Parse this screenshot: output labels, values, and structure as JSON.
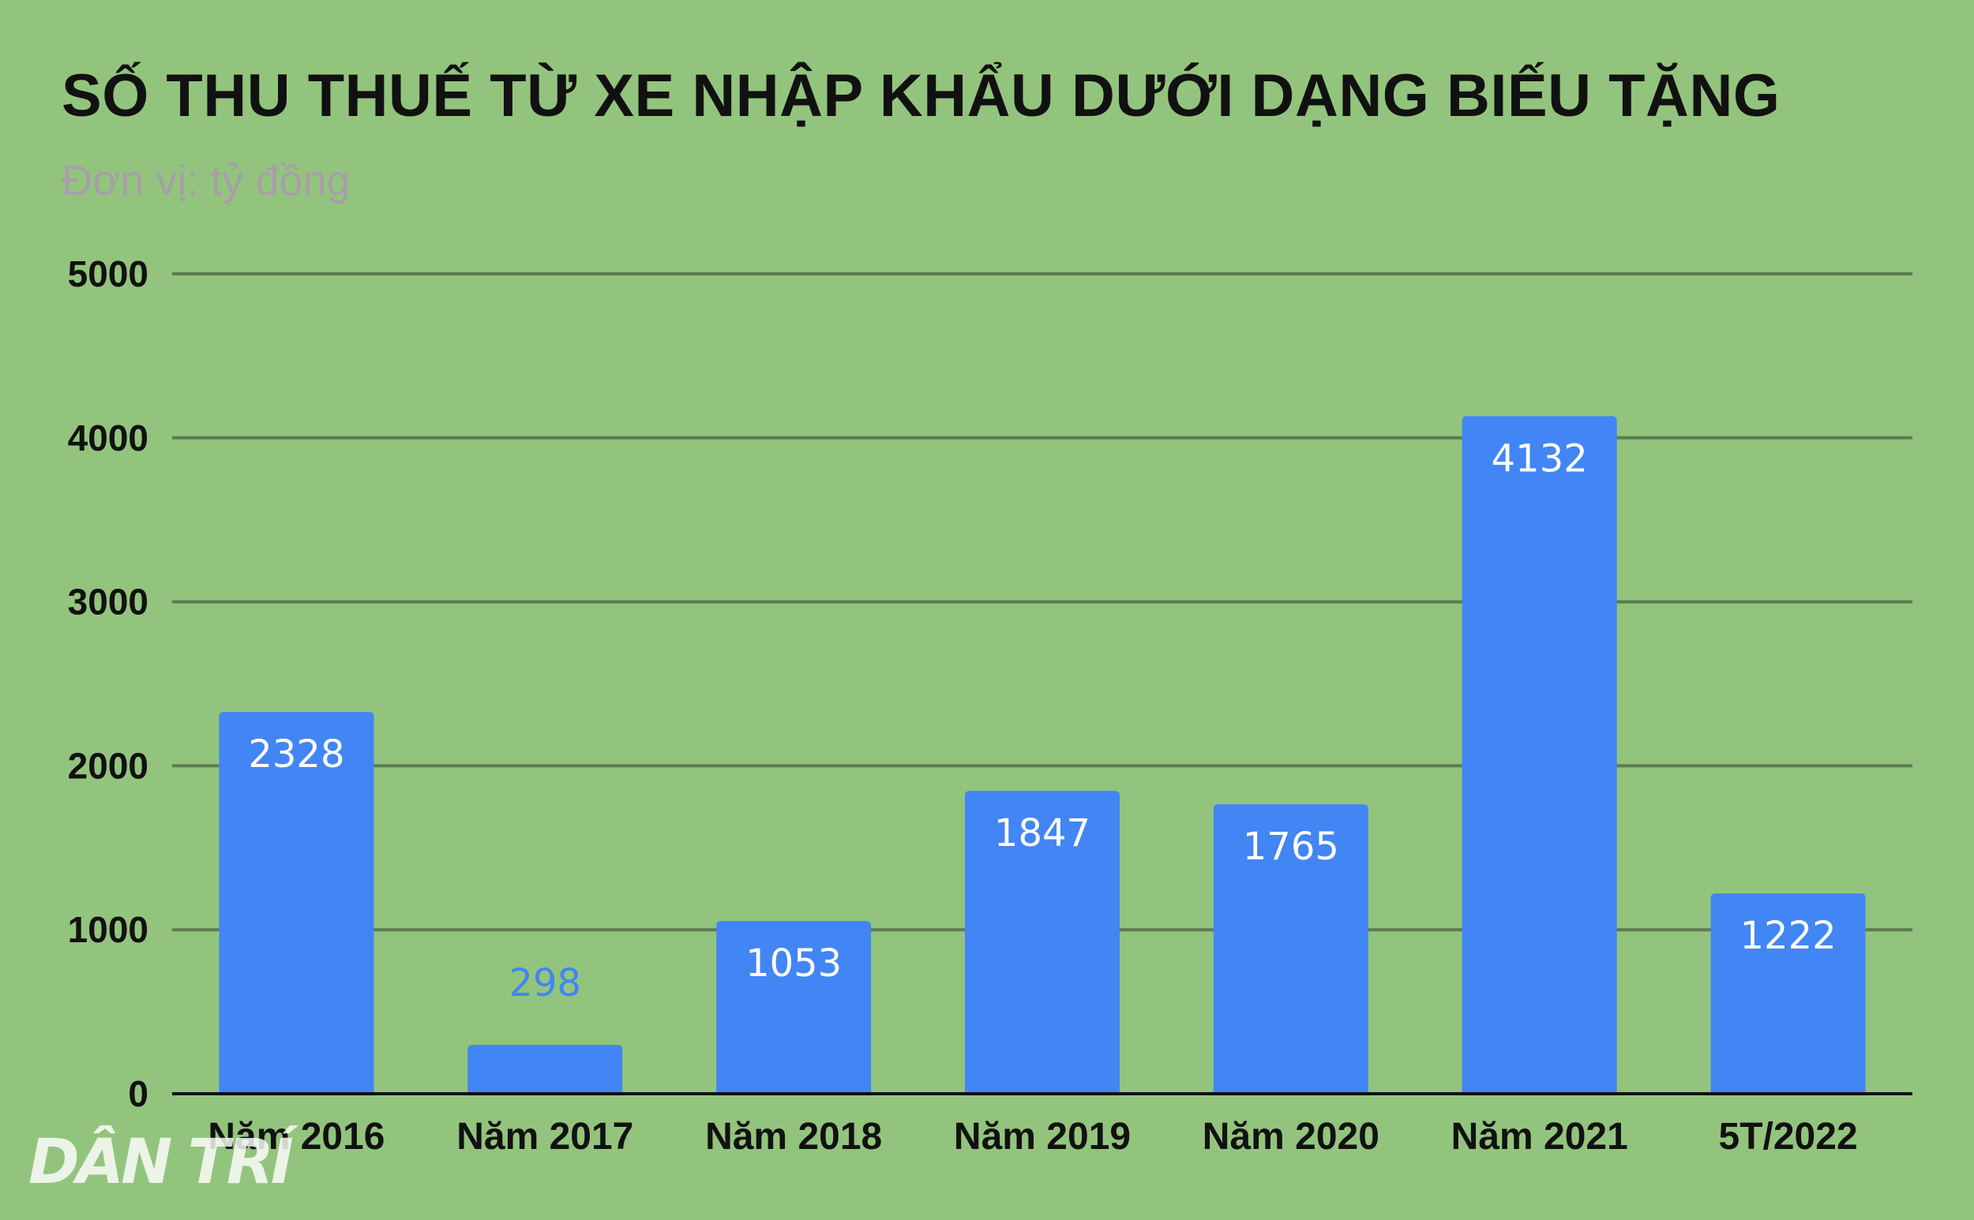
{
  "chart_data": {
    "type": "bar",
    "title": "SỐ THU THUẾ TỪ XE NHẬP KHẨU DƯỚI DẠNG BIẾU TẶNG",
    "subtitle": "Đơn vị: tỷ đồng",
    "categories": [
      "Năm 2016",
      "Năm 2017",
      "Năm 2018",
      "Năm 2019",
      "Năm 2020",
      "Năm 2021",
      "5T/2022"
    ],
    "values": [
      2328,
      298,
      1053,
      1847,
      1765,
      4132,
      1222
    ],
    "data_labels": [
      "2328",
      "298",
      "1053",
      "1847",
      "1765",
      "4132",
      "1222"
    ],
    "y_ticks": [
      "0",
      "1000",
      "2000",
      "3000",
      "4000",
      "5000"
    ],
    "ylim": [
      0,
      5000
    ],
    "xlabel": "",
    "ylabel": "",
    "grid": true,
    "colors": {
      "bar": "#4285f4",
      "background": "#93c47d",
      "gridline": "#5f7a55",
      "label_inside": "#ffffff",
      "label_outside": "#4285f4"
    }
  },
  "watermark": "DÂN TRÍ"
}
